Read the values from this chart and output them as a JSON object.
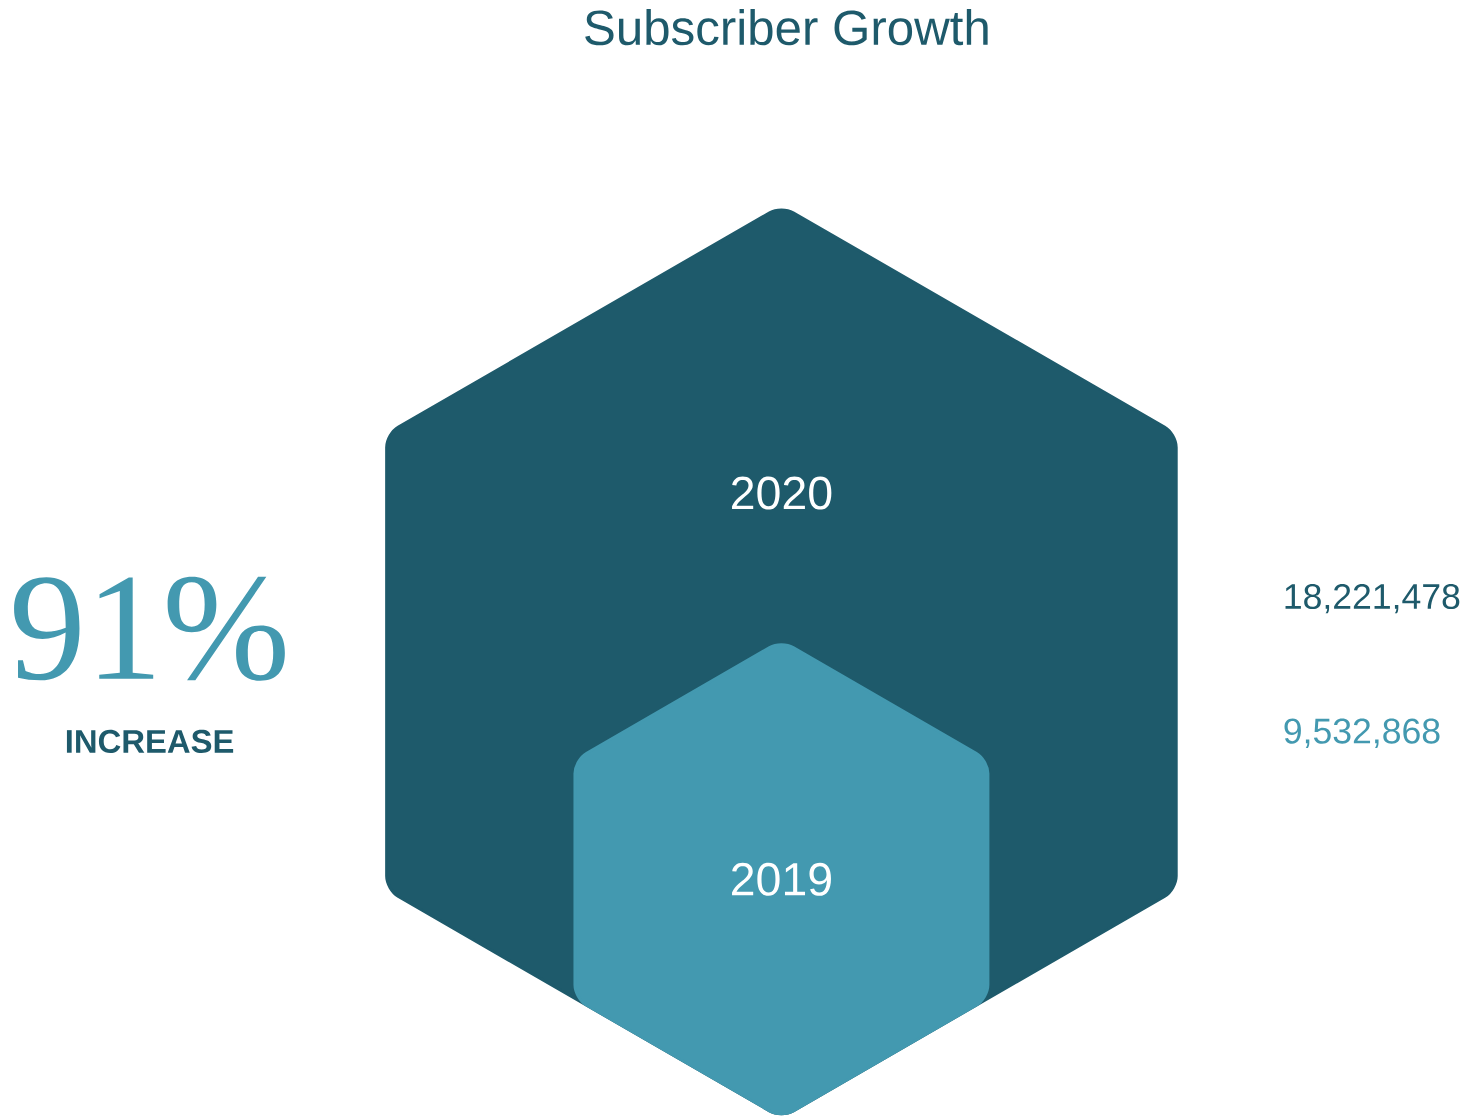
{
  "chart_data": {
    "type": "other",
    "title": "Subscriber Growth",
    "categories": [
      "2020",
      "2019"
    ],
    "values": [
      18221478,
      9532868
    ],
    "value_labels": [
      "18,221,478",
      "9,532,868"
    ],
    "colors": [
      "#1e5a6b",
      "#4399b0"
    ],
    "annotations": [
      "91%",
      "INCREASE"
    ]
  }
}
